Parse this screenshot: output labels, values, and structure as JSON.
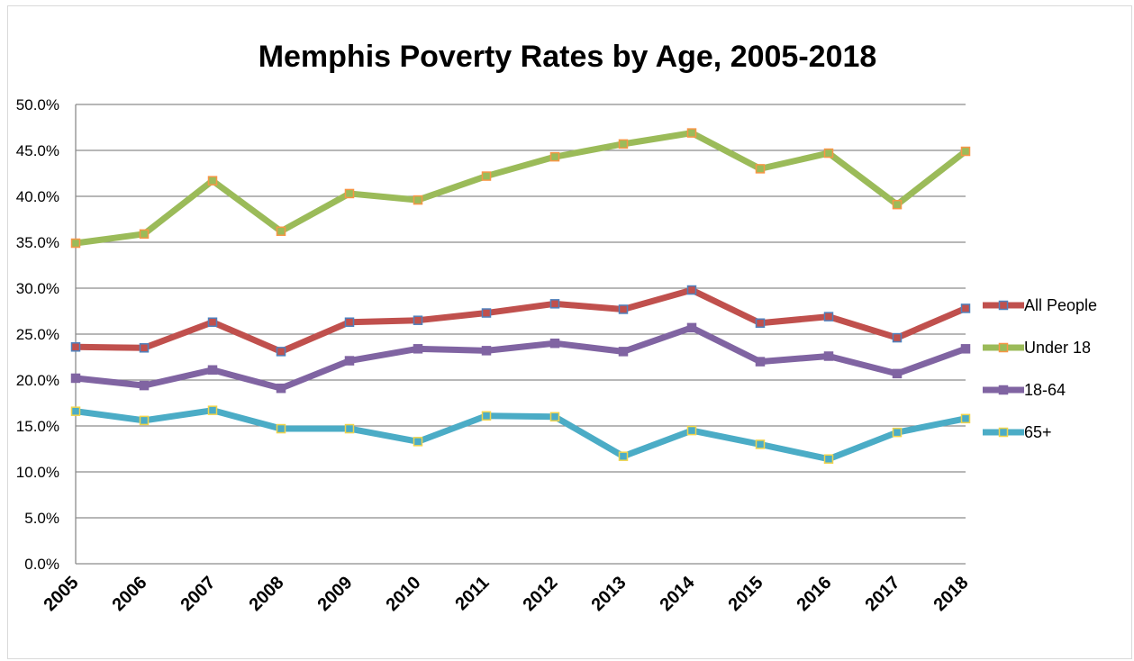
{
  "chart_data": {
    "type": "line",
    "title": "Memphis Poverty Rates by Age, 2005-2018",
    "xlabel": "",
    "ylabel": "",
    "ylim": [
      0,
      50
    ],
    "ytick_labels": [
      "0.0%",
      "5.0%",
      "10.0%",
      "15.0%",
      "20.0%",
      "25.0%",
      "30.0%",
      "35.0%",
      "40.0%",
      "45.0%",
      "50.0%"
    ],
    "categories": [
      "2005",
      "2006",
      "2007",
      "2008",
      "2009",
      "2010",
      "2011",
      "2012",
      "2013",
      "2014",
      "2015",
      "2016",
      "2017",
      "2018"
    ],
    "grid": "horizontal",
    "legend_position": "right",
    "series": [
      {
        "name": "All People",
        "color": "#c0504d",
        "marker_color": "#4f81bd",
        "values": [
          23.6,
          23.5,
          26.3,
          23.1,
          26.3,
          26.5,
          27.3,
          28.3,
          27.7,
          29.8,
          26.2,
          26.9,
          24.6,
          27.8
        ]
      },
      {
        "name": "Under 18",
        "color": "#9bbb59",
        "marker_color": "#f79646",
        "values": [
          34.9,
          35.9,
          41.7,
          36.2,
          40.3,
          39.6,
          42.2,
          44.3,
          45.7,
          46.9,
          43.0,
          44.7,
          39.1,
          44.9
        ]
      },
      {
        "name": "18-64",
        "color": "#8064a2",
        "marker_color": "#8064a2",
        "values": [
          20.2,
          19.4,
          21.1,
          19.1,
          22.1,
          23.4,
          23.2,
          24.0,
          23.1,
          25.7,
          22.0,
          22.6,
          20.7,
          23.4
        ]
      },
      {
        "name": "65+",
        "color": "#4bacc6",
        "marker_color": "#f0d44c",
        "values": [
          16.6,
          15.6,
          16.7,
          14.7,
          14.7,
          13.3,
          16.1,
          16.0,
          11.7,
          14.5,
          13.0,
          11.4,
          14.3,
          15.8
        ]
      }
    ]
  }
}
